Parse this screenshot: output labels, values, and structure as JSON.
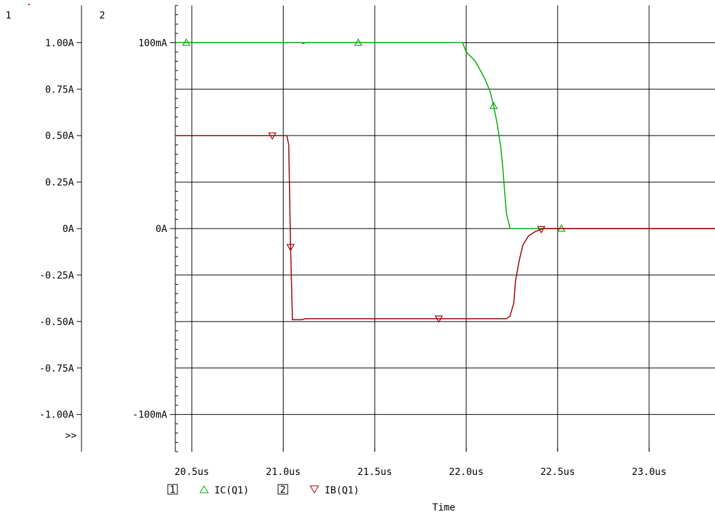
{
  "chart_data": {
    "type": "line",
    "xlabel": "Time",
    "x_ticks": [
      {
        "value": 20.5,
        "label": "20.5us"
      },
      {
        "value": 21.0,
        "label": "21.0us"
      },
      {
        "value": 21.5,
        "label": "21.5us"
      },
      {
        "value": 22.0,
        "label": "22.0us"
      },
      {
        "value": 22.5,
        "label": "22.5us"
      },
      {
        "value": 23.0,
        "label": "23.0us"
      }
    ],
    "xlim": [
      20.41,
      23.36
    ],
    "axes": [
      {
        "id": "1",
        "ylim": [
          -1.2,
          1.2
        ],
        "tick_labels": [
          {
            "value": 1.0,
            "label": "1.00A"
          },
          {
            "value": 0.75,
            "label": "0.75A"
          },
          {
            "value": 0.5,
            "label": "0.50A"
          },
          {
            "value": 0.25,
            "label": "0.25A"
          },
          {
            "value": 0.0,
            "label": "0A"
          },
          {
            "value": -0.25,
            "label": "-0.25A"
          },
          {
            "value": -0.5,
            "label": "-0.50A"
          },
          {
            "value": -0.75,
            "label": "-0.75A"
          },
          {
            "value": -1.0,
            "label": "-1.00A"
          }
        ]
      },
      {
        "id": "2",
        "ylim": [
          -0.12,
          0.12
        ],
        "tick_labels": [
          {
            "value": 0.1,
            "label": "100mA"
          },
          {
            "value": 0.0,
            "label": "0A"
          },
          {
            "value": -0.1,
            "label": "-100mA"
          }
        ]
      }
    ],
    "overflow_marker": ">>",
    "grid": true,
    "legend_position": "bottom-left",
    "series": [
      {
        "name": "IC(Q1)",
        "axis": "1",
        "color": "#00aa00",
        "marker": "triangle-up",
        "x": [
          20.41,
          21.1,
          21.11,
          21.12,
          21.98,
          22.0,
          22.05,
          22.1,
          22.13,
          22.15,
          22.17,
          22.19,
          22.2,
          22.21,
          22.22,
          22.24,
          22.26,
          23.36
        ],
        "y": [
          1.0,
          1.0,
          0.995,
          1.0,
          1.0,
          0.95,
          0.9,
          0.81,
          0.74,
          0.66,
          0.56,
          0.43,
          0.33,
          0.2,
          0.08,
          0.0,
          0.0,
          0.0
        ],
        "marker_x": [
          20.47,
          21.41,
          22.15,
          22.52
        ]
      },
      {
        "name": "IB(Q1)",
        "axis": "2",
        "color": "#990000",
        "marker": "triangle-down",
        "x": [
          20.41,
          21.02,
          21.03,
          21.04,
          21.05,
          21.1,
          21.12,
          21.6,
          22.2,
          22.22,
          22.24,
          22.26,
          22.27,
          22.29,
          22.31,
          22.34,
          22.38,
          22.42,
          22.5,
          23.36
        ],
        "y": [
          0.05,
          0.05,
          0.045,
          -0.01,
          -0.049,
          -0.049,
          -0.0485,
          -0.0485,
          -0.0485,
          -0.0485,
          -0.047,
          -0.04,
          -0.028,
          -0.017,
          -0.009,
          -0.004,
          -0.0015,
          0.0,
          0.0,
          0.0
        ],
        "marker_x": [
          20.94,
          21.04,
          21.85,
          22.41
        ]
      }
    ]
  },
  "legend": {
    "items": [
      {
        "index": "1",
        "label": "IC(Q1)"
      },
      {
        "index": "2",
        "label": "IB(Q1)"
      }
    ]
  },
  "corner_mark_color": "#ff0000"
}
